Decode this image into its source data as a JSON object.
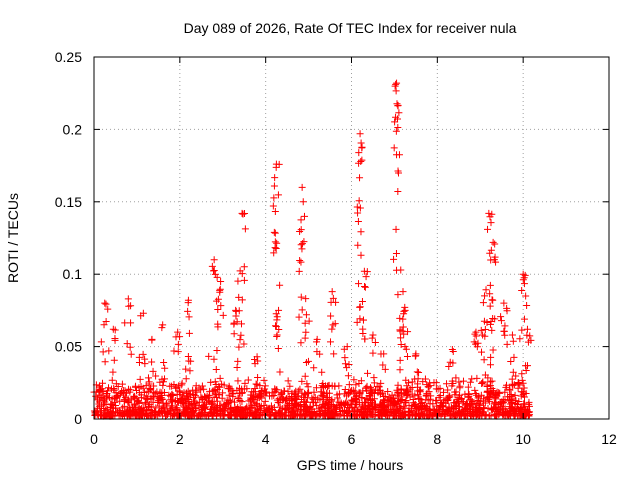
{
  "chart_data": {
    "type": "scatter",
    "title": "Day 089 of 2026, Rate Of TEC Index for receiver nula",
    "xlabel": "GPS time / hours",
    "ylabel": "ROTI / TECUs",
    "xlim": [
      0,
      12
    ],
    "ylim": [
      0,
      0.25
    ],
    "xticks": [
      0,
      2,
      4,
      6,
      8,
      10,
      12
    ],
    "xtick_labels": [
      "0",
      "2",
      "4",
      "6",
      "8",
      "10",
      "12"
    ],
    "yticks": [
      0,
      0.05,
      0.1,
      0.15,
      0.2,
      0.25
    ],
    "ytick_labels": [
      "0",
      "0.05",
      "0.1",
      "0.15",
      "0.2",
      "0.25"
    ],
    "grid": true,
    "marker": "+",
    "color": "#ff0000",
    "data_range_hours": [
      0,
      10.15
    ],
    "typical_roti_range": [
      0.002,
      0.03
    ],
    "peaks": [
      {
        "x": 0.25,
        "y": 0.08
      },
      {
        "x": 0.45,
        "y": 0.062
      },
      {
        "x": 0.8,
        "y": 0.083
      },
      {
        "x": 1.15,
        "y": 0.073
      },
      {
        "x": 1.35,
        "y": 0.055
      },
      {
        "x": 1.6,
        "y": 0.065
      },
      {
        "x": 1.95,
        "y": 0.06
      },
      {
        "x": 2.2,
        "y": 0.082
      },
      {
        "x": 2.8,
        "y": 0.11
      },
      {
        "x": 2.95,
        "y": 0.095
      },
      {
        "x": 3.3,
        "y": 0.075
      },
      {
        "x": 3.45,
        "y": 0.142
      },
      {
        "x": 3.8,
        "y": 0.043
      },
      {
        "x": 4.25,
        "y": 0.176
      },
      {
        "x": 4.3,
        "y": 0.075
      },
      {
        "x": 4.85,
        "y": 0.16
      },
      {
        "x": 4.95,
        "y": 0.072
      },
      {
        "x": 5.2,
        "y": 0.055
      },
      {
        "x": 5.55,
        "y": 0.088
      },
      {
        "x": 5.9,
        "y": 0.05
      },
      {
        "x": 6.2,
        "y": 0.197
      },
      {
        "x": 6.3,
        "y": 0.102
      },
      {
        "x": 6.5,
        "y": 0.058
      },
      {
        "x": 6.75,
        "y": 0.045
      },
      {
        "x": 7.05,
        "y": 0.232
      },
      {
        "x": 7.2,
        "y": 0.088
      },
      {
        "x": 7.25,
        "y": 0.075
      },
      {
        "x": 7.5,
        "y": 0.045
      },
      {
        "x": 8.35,
        "y": 0.048
      },
      {
        "x": 8.9,
        "y": 0.06
      },
      {
        "x": 9.1,
        "y": 0.085
      },
      {
        "x": 9.2,
        "y": 0.142
      },
      {
        "x": 9.3,
        "y": 0.122
      },
      {
        "x": 9.55,
        "y": 0.08
      },
      {
        "x": 9.75,
        "y": 0.058
      },
      {
        "x": 10.0,
        "y": 0.1
      },
      {
        "x": 10.1,
        "y": 0.062
      }
    ]
  }
}
